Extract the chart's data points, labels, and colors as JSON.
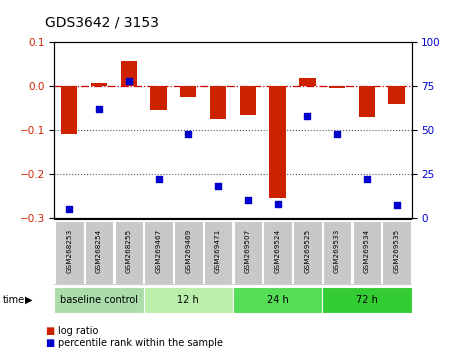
{
  "title": "GDS3642 / 3153",
  "samples": [
    "GSM268253",
    "GSM268254",
    "GSM268255",
    "GSM269467",
    "GSM269469",
    "GSM269471",
    "GSM269507",
    "GSM269524",
    "GSM269525",
    "GSM269533",
    "GSM269534",
    "GSM269535"
  ],
  "log_ratio": [
    -0.108,
    0.008,
    0.057,
    -0.055,
    -0.025,
    -0.075,
    -0.065,
    -0.255,
    0.018,
    -0.005,
    -0.07,
    -0.04
  ],
  "percentile_rank": [
    5,
    62,
    78,
    22,
    48,
    18,
    10,
    8,
    58,
    48,
    22,
    7
  ],
  "ylim_left": [
    -0.3,
    0.1
  ],
  "ylim_right": [
    0,
    100
  ],
  "yticks_left": [
    0.1,
    0.0,
    -0.1,
    -0.2,
    -0.3
  ],
  "yticks_right": [
    100,
    75,
    50,
    25,
    0
  ],
  "bar_color": "#CC2200",
  "dot_color": "#0000CC",
  "zero_line_color": "#CC0000",
  "dotted_line_color": "#555555",
  "bg_color": "#FFFFFF",
  "plot_bg": "#FFFFFF",
  "tick_label_bg": "#CCCCCC",
  "bar_width": 0.55,
  "groups": [
    {
      "label": "baseline control",
      "start": 0,
      "end": 3,
      "color": "#AADDAA"
    },
    {
      "label": "12 h",
      "start": 3,
      "end": 6,
      "color": "#BBEEAA"
    },
    {
      "label": "24 h",
      "start": 6,
      "end": 9,
      "color": "#55DD55"
    },
    {
      "label": "72 h",
      "start": 9,
      "end": 12,
      "color": "#33CC33"
    }
  ]
}
